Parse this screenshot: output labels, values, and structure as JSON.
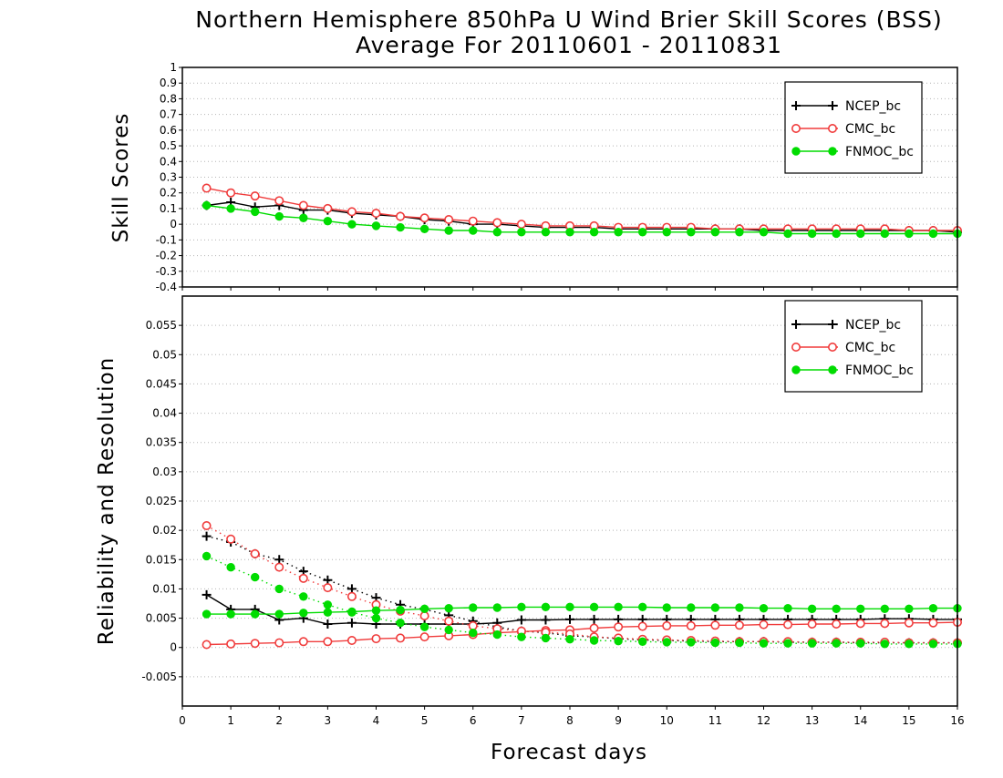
{
  "chart_data": {
    "type": "line",
    "title": "Northern Hemisphere 850hPa U Wind Brier Skill Scores (BSS)",
    "subtitle": "Average For 20110601 - 20110831",
    "xlabel": "Forecast days",
    "xlim": [
      0,
      16
    ],
    "xticks": [
      "0",
      "1",
      "2",
      "3",
      "4",
      "5",
      "6",
      "7",
      "8",
      "9",
      "10",
      "11",
      "12",
      "13",
      "14",
      "15",
      "16"
    ],
    "colors": {
      "NCEP_bc": "#000000",
      "CMC_bc": "#f03c3c",
      "FNMOC_bc": "#00dc00"
    },
    "panels": [
      {
        "id": "bss",
        "ylabel": "Skill Scores",
        "ylim": [
          -0.4,
          1
        ],
        "yticks": [
          "-0.4",
          "-0.3",
          "-0.2",
          "-0.1",
          "0",
          "0.1",
          "0.2",
          "0.3",
          "0.4",
          "0.5",
          "0.6",
          "0.7",
          "0.8",
          "0.9",
          "1"
        ],
        "grid": true,
        "legend": "top-right",
        "legend_entries": [
          "NCEP_bc",
          "CMC_bc",
          "FNMOC_bc"
        ],
        "x": [
          0.5,
          1,
          1.5,
          2,
          2.5,
          3,
          3.5,
          4,
          4.5,
          5,
          5.5,
          6,
          6.5,
          7,
          7.5,
          8,
          8.5,
          9,
          9.5,
          10,
          10.5,
          11,
          11.5,
          12,
          12.5,
          13,
          13.5,
          14,
          14.5,
          15,
          15.5,
          16
        ],
        "series": [
          {
            "name": "NCEP_bc",
            "line": "solid",
            "marker": "plus",
            "values": [
              0.12,
              0.14,
              0.11,
              0.12,
              0.09,
              0.09,
              0.07,
              0.06,
              0.05,
              0.03,
              0.02,
              0.0,
              0.0,
              -0.01,
              -0.02,
              -0.02,
              -0.02,
              -0.03,
              -0.03,
              -0.03,
              -0.03,
              -0.03,
              -0.03,
              -0.04,
              -0.04,
              -0.04,
              -0.04,
              -0.04,
              -0.04,
              -0.04,
              -0.04,
              -0.05
            ]
          },
          {
            "name": "CMC_bc",
            "line": "solid",
            "marker": "open-circle",
            "values": [
              0.23,
              0.2,
              0.18,
              0.15,
              0.12,
              0.1,
              0.08,
              0.07,
              0.05,
              0.04,
              0.03,
              0.02,
              0.01,
              0.0,
              -0.01,
              -0.01,
              -0.01,
              -0.02,
              -0.02,
              -0.02,
              -0.02,
              -0.03,
              -0.03,
              -0.03,
              -0.03,
              -0.03,
              -0.03,
              -0.03,
              -0.03,
              -0.04,
              -0.04,
              -0.04
            ]
          },
          {
            "name": "FNMOC_bc",
            "line": "solid",
            "marker": "filled-circle",
            "values": [
              0.12,
              0.1,
              0.08,
              0.05,
              0.04,
              0.02,
              0.0,
              -0.01,
              -0.02,
              -0.03,
              -0.04,
              -0.04,
              -0.05,
              -0.05,
              -0.05,
              -0.05,
              -0.05,
              -0.05,
              -0.05,
              -0.05,
              -0.05,
              -0.05,
              -0.05,
              -0.05,
              -0.06,
              -0.06,
              -0.06,
              -0.06,
              -0.06,
              -0.06,
              -0.06,
              -0.06
            ]
          }
        ]
      },
      {
        "id": "rel-res",
        "ylabel": "Reliability and Resolution",
        "ylim": [
          -0.01,
          0.06
        ],
        "yticks": [
          "-0.005",
          "0",
          "0.005",
          "0.01",
          "0.015",
          "0.02",
          "0.025",
          "0.03",
          "0.035",
          "0.04",
          "0.045",
          "0.05",
          "0.055"
        ],
        "grid": true,
        "legend": "top-right",
        "legend_entries": [
          "NCEP_bc",
          "CMC_bc",
          "FNMOC_bc"
        ],
        "x": [
          0.5,
          1,
          1.5,
          2,
          2.5,
          3,
          3.5,
          4,
          4.5,
          5,
          5.5,
          6,
          6.5,
          7,
          7.5,
          8,
          8.5,
          9,
          9.5,
          10,
          10.5,
          11,
          11.5,
          12,
          12.5,
          13,
          13.5,
          14,
          14.5,
          15,
          15.5,
          16
        ],
        "series": [
          {
            "name": "NCEP_bc reliability",
            "base": "NCEP_bc",
            "line": "solid",
            "marker": "plus",
            "values": [
              0.009,
              0.0065,
              0.0065,
              0.0047,
              0.005,
              0.004,
              0.0042,
              0.004,
              0.004,
              0.004,
              0.004,
              0.004,
              0.0042,
              0.0047,
              0.0047,
              0.0048,
              0.0048,
              0.0048,
              0.0048,
              0.0048,
              0.0048,
              0.0048,
              0.0048,
              0.0048,
              0.0048,
              0.0048,
              0.0048,
              0.0048,
              0.0049,
              0.0049,
              0.0048,
              0.0048
            ]
          },
          {
            "name": "NCEP_bc resolution",
            "base": "NCEP_bc",
            "line": "dotted",
            "marker": "plus",
            "values": [
              0.019,
              0.018,
              0.016,
              0.015,
              0.013,
              0.0115,
              0.01,
              0.0085,
              0.0073,
              0.0065,
              0.0055,
              0.0045,
              0.0035,
              0.0028,
              0.0025,
              0.002,
              0.0018,
              0.0015,
              0.0013,
              0.0012,
              0.0011,
              0.001,
              0.001,
              0.001,
              0.0009,
              0.0009,
              0.0009,
              0.0008,
              0.0008,
              0.0008,
              0.0008,
              0.0008
            ]
          },
          {
            "name": "CMC_bc reliability",
            "base": "CMC_bc",
            "line": "solid",
            "marker": "open-circle",
            "values": [
              0.0005,
              0.0006,
              0.0007,
              0.0008,
              0.001,
              0.001,
              0.0012,
              0.0015,
              0.0016,
              0.0018,
              0.002,
              0.0022,
              0.0025,
              0.0027,
              0.0029,
              0.003,
              0.0033,
              0.0035,
              0.0036,
              0.0037,
              0.0037,
              0.0038,
              0.0038,
              0.0039,
              0.0039,
              0.004,
              0.004,
              0.0041,
              0.0041,
              0.0042,
              0.0042,
              0.0043
            ]
          },
          {
            "name": "CMC_bc resolution",
            "base": "CMC_bc",
            "line": "dotted",
            "marker": "open-circle",
            "values": [
              0.0208,
              0.0185,
              0.016,
              0.0137,
              0.0118,
              0.0102,
              0.0087,
              0.0073,
              0.0062,
              0.0054,
              0.0045,
              0.0037,
              0.0032,
              0.0028,
              0.0026,
              0.0023,
              0.0018,
              0.0016,
              0.0014,
              0.0013,
              0.0012,
              0.0011,
              0.001,
              0.001,
              0.001,
              0.0009,
              0.0009,
              0.0009,
              0.0009,
              0.0008,
              0.0008,
              0.0008
            ]
          },
          {
            "name": "FNMOC_bc reliability",
            "base": "FNMOC_bc",
            "line": "solid",
            "marker": "filled-circle",
            "values": [
              0.0057,
              0.0057,
              0.0057,
              0.0057,
              0.0059,
              0.006,
              0.0061,
              0.0063,
              0.0064,
              0.0066,
              0.0067,
              0.0068,
              0.0068,
              0.0069,
              0.0069,
              0.0069,
              0.0069,
              0.0069,
              0.0069,
              0.0068,
              0.0068,
              0.0068,
              0.0068,
              0.0067,
              0.0067,
              0.0066,
              0.0066,
              0.0066,
              0.0066,
              0.0066,
              0.0067,
              0.0067
            ]
          },
          {
            "name": "FNMOC_bc resolution",
            "base": "FNMOC_bc",
            "line": "dotted",
            "marker": "filled-circle",
            "values": [
              0.0156,
              0.0137,
              0.012,
              0.01,
              0.0087,
              0.0073,
              0.006,
              0.005,
              0.0042,
              0.0035,
              0.003,
              0.0025,
              0.0022,
              0.0018,
              0.0016,
              0.0014,
              0.0012,
              0.0011,
              0.001,
              0.0009,
              0.0009,
              0.0008,
              0.0008,
              0.0007,
              0.0007,
              0.0007,
              0.0007,
              0.0007,
              0.0006,
              0.0006,
              0.0006,
              0.0006
            ]
          }
        ]
      }
    ]
  }
}
